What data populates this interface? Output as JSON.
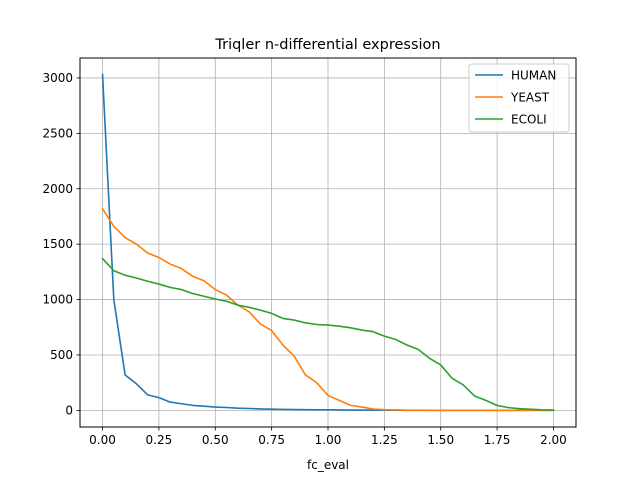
{
  "chart_data": {
    "type": "line",
    "title": "Triqler n-differential expression",
    "xlabel": "fc_eval",
    "ylabel": "",
    "xlim": [
      -0.1,
      2.1
    ],
    "ylim": [
      -150,
      3180
    ],
    "grid": true,
    "legend_position": "top-right",
    "x_ticks": [
      0.0,
      0.25,
      0.5,
      0.75,
      1.0,
      1.25,
      1.5,
      1.75,
      2.0
    ],
    "x_tick_labels": [
      "0.00",
      "0.25",
      "0.50",
      "0.75",
      "1.00",
      "1.25",
      "1.50",
      "1.75",
      "2.00"
    ],
    "y_ticks": [
      0,
      500,
      1000,
      1500,
      2000,
      2500,
      3000
    ],
    "y_tick_labels": [
      "0",
      "500",
      "1000",
      "1500",
      "2000",
      "2500",
      "3000"
    ],
    "x": [
      0.0,
      0.05,
      0.1,
      0.15,
      0.2,
      0.25,
      0.3,
      0.35,
      0.4,
      0.45,
      0.5,
      0.55,
      0.6,
      0.65,
      0.7,
      0.75,
      0.8,
      0.85,
      0.9,
      0.95,
      1.0,
      1.05,
      1.1,
      1.15,
      1.2,
      1.25,
      1.3,
      1.35,
      1.4,
      1.45,
      1.5,
      1.55,
      1.6,
      1.65,
      1.7,
      1.75,
      1.8,
      1.85,
      1.9,
      1.95,
      2.0
    ],
    "series": [
      {
        "name": "HUMAN",
        "color": "#1f77b4",
        "values": [
          3030,
          1000,
          320,
          240,
          140,
          115,
          75,
          60,
          45,
          38,
          30,
          26,
          20,
          17,
          13,
          11,
          9,
          7,
          6,
          5,
          5,
          4,
          3,
          3,
          2,
          2,
          2,
          1,
          1,
          1,
          1,
          1,
          1,
          0,
          0,
          0,
          0,
          0,
          0,
          0,
          0
        ]
      },
      {
        "name": "YEAST",
        "color": "#ff7f0e",
        "values": [
          1820,
          1660,
          1560,
          1500,
          1420,
          1380,
          1320,
          1280,
          1210,
          1170,
          1090,
          1040,
          950,
          890,
          780,
          720,
          590,
          490,
          320,
          250,
          135,
          90,
          45,
          30,
          12,
          6,
          4,
          2,
          2,
          1,
          1,
          1,
          1,
          1,
          0,
          0,
          0,
          0,
          0,
          0,
          0
        ]
      },
      {
        "name": "ECOLI",
        "color": "#2ca02c",
        "values": [
          1370,
          1260,
          1220,
          1195,
          1165,
          1140,
          1110,
          1090,
          1055,
          1030,
          1005,
          985,
          950,
          930,
          905,
          875,
          830,
          815,
          790,
          775,
          770,
          760,
          745,
          725,
          710,
          670,
          640,
          590,
          550,
          470,
          410,
          290,
          230,
          130,
          90,
          45,
          25,
          15,
          10,
          5,
          3
        ]
      }
    ]
  }
}
